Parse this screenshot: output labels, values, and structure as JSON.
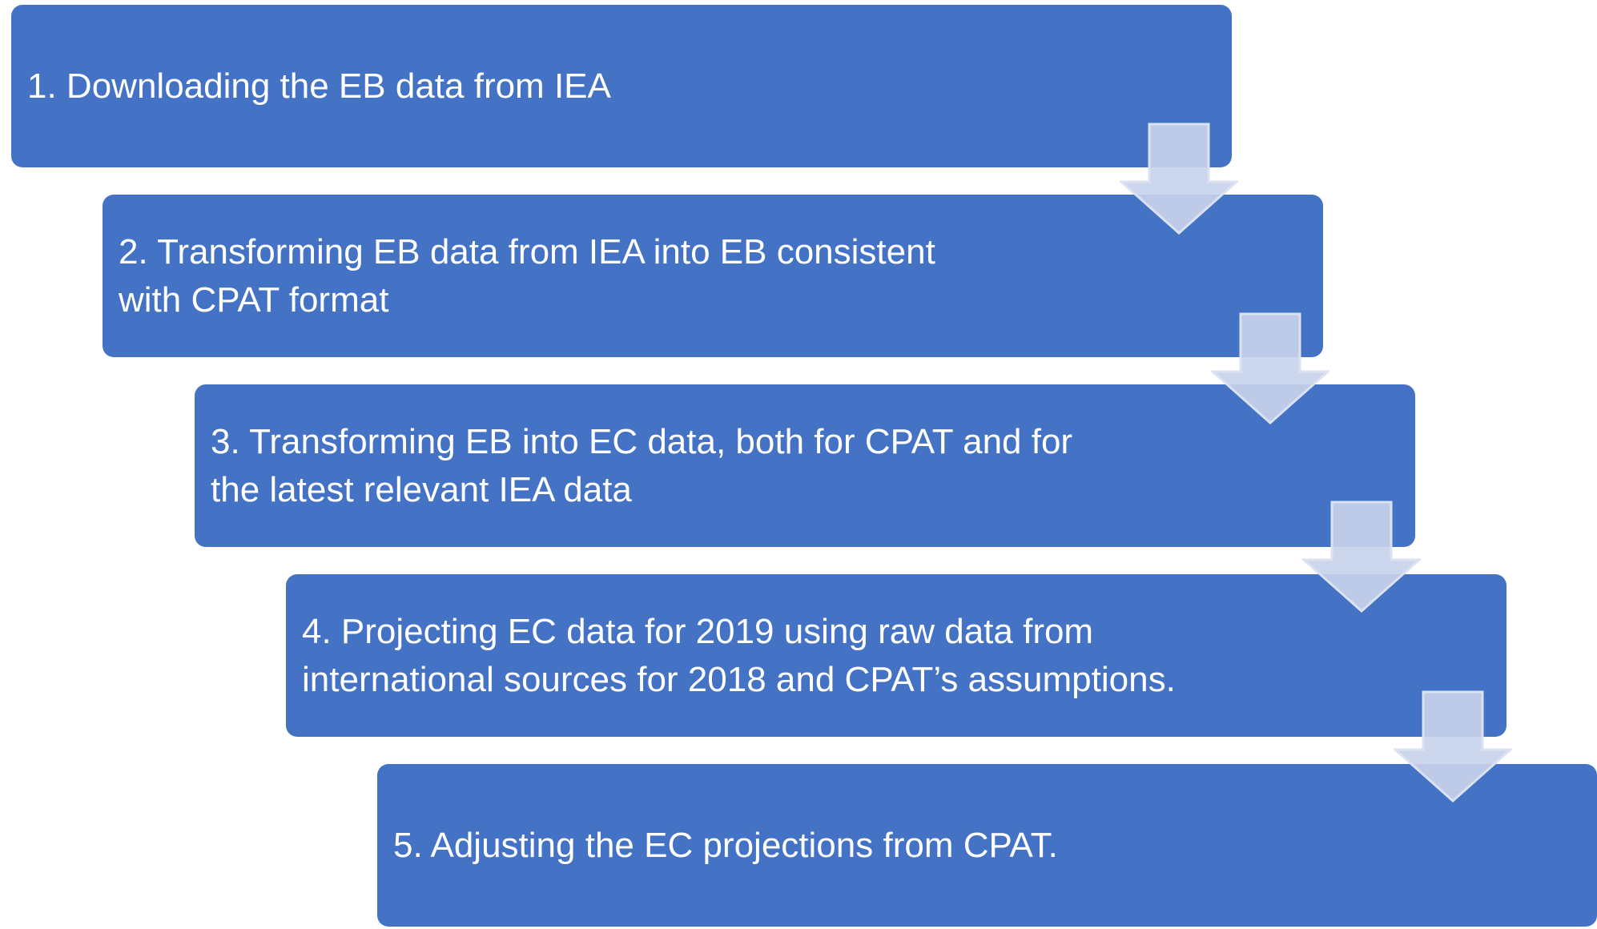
{
  "steps": [
    {
      "label": "1. Downloading the EB data from IEA"
    },
    {
      "label": "2. Transforming EB data from IEA into EB consistent\nwith CPAT format"
    },
    {
      "label": "3. Transforming EB into EC data, both for CPAT and for\nthe latest relevant IEA data"
    },
    {
      "label": "4. Projecting EC data for 2019 using raw data from\ninternational sources for 2018 and CPAT’s assumptions."
    },
    {
      "label": "5. Adjusting the EC projections from CPAT."
    }
  ],
  "colors": {
    "box_fill": "#4472c4",
    "box_text": "#ffffff",
    "arrow_fill": "#c8d3ea",
    "arrow_stroke": "#dbe2f1"
  }
}
